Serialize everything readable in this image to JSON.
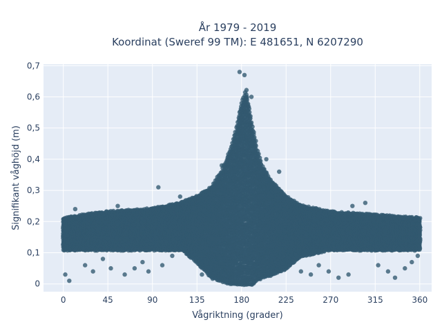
{
  "chart_data": {
    "type": "scatter",
    "title": "År 1979 - 2019",
    "subtitle": "Koordinat (Sweref 99 TM): E 481651, N 6207290",
    "xlabel": "Vågriktning (grader)",
    "ylabel": "Signifikant våghöjd (m)",
    "xlim": [
      -20,
      372
    ],
    "ylim": [
      -0.025,
      0.705
    ],
    "x_ticks": [
      0,
      45,
      90,
      135,
      180,
      225,
      270,
      315,
      360
    ],
    "x_tick_labels": [
      "0",
      "45",
      "90",
      "135",
      "180",
      "225",
      "270",
      "315",
      "360"
    ],
    "y_ticks": [
      0,
      0.1,
      0.2,
      0.3,
      0.4,
      0.5,
      0.6,
      0.7
    ],
    "y_tick_labels": [
      "0",
      "0,1",
      "0,2",
      "0,3",
      "0,4",
      "0,5",
      "0,6",
      "0,7"
    ],
    "grid": true,
    "legend": "none",
    "colors": {
      "marker": "#32586f",
      "plot_bg": "#e5ecf6",
      "grid": "#ffffff",
      "text": "#2a3f5f"
    },
    "envelope": {
      "x": [
        0,
        20,
        45,
        90,
        120,
        135,
        150,
        160,
        170,
        175,
        180,
        185,
        190,
        195,
        200,
        210,
        225,
        240,
        270,
        315,
        360
      ],
      "y_upper": [
        0.21,
        0.22,
        0.23,
        0.24,
        0.26,
        0.28,
        0.31,
        0.36,
        0.44,
        0.5,
        0.58,
        0.62,
        0.52,
        0.44,
        0.38,
        0.33,
        0.28,
        0.25,
        0.23,
        0.22,
        0.21
      ],
      "y_lower": [
        0.11,
        0.11,
        0.11,
        0.11,
        0.11,
        0.07,
        0.02,
        0.01,
        0.0,
        0.0,
        0.0,
        0.0,
        0.0,
        0.01,
        0.02,
        0.03,
        0.05,
        0.09,
        0.11,
        0.11,
        0.11
      ]
    },
    "outliers": [
      {
        "x": 2,
        "y": 0.03
      },
      {
        "x": 6,
        "y": 0.01
      },
      {
        "x": 12,
        "y": 0.24
      },
      {
        "x": 22,
        "y": 0.06
      },
      {
        "x": 30,
        "y": 0.04
      },
      {
        "x": 40,
        "y": 0.08
      },
      {
        "x": 48,
        "y": 0.05
      },
      {
        "x": 55,
        "y": 0.25
      },
      {
        "x": 62,
        "y": 0.03
      },
      {
        "x": 72,
        "y": 0.05
      },
      {
        "x": 80,
        "y": 0.07
      },
      {
        "x": 86,
        "y": 0.04
      },
      {
        "x": 96,
        "y": 0.31
      },
      {
        "x": 100,
        "y": 0.06
      },
      {
        "x": 110,
        "y": 0.09
      },
      {
        "x": 118,
        "y": 0.28
      },
      {
        "x": 140,
        "y": 0.03
      },
      {
        "x": 160,
        "y": 0.38
      },
      {
        "x": 178,
        "y": 0.68
      },
      {
        "x": 183,
        "y": 0.67
      },
      {
        "x": 190,
        "y": 0.6
      },
      {
        "x": 205,
        "y": 0.4
      },
      {
        "x": 218,
        "y": 0.36
      },
      {
        "x": 240,
        "y": 0.04
      },
      {
        "x": 250,
        "y": 0.03
      },
      {
        "x": 258,
        "y": 0.06
      },
      {
        "x": 268,
        "y": 0.04
      },
      {
        "x": 278,
        "y": 0.02
      },
      {
        "x": 288,
        "y": 0.03
      },
      {
        "x": 292,
        "y": 0.25
      },
      {
        "x": 305,
        "y": 0.26
      },
      {
        "x": 318,
        "y": 0.06
      },
      {
        "x": 328,
        "y": 0.04
      },
      {
        "x": 335,
        "y": 0.02
      },
      {
        "x": 345,
        "y": 0.05
      },
      {
        "x": 352,
        "y": 0.07
      },
      {
        "x": 358,
        "y": 0.09
      }
    ]
  }
}
